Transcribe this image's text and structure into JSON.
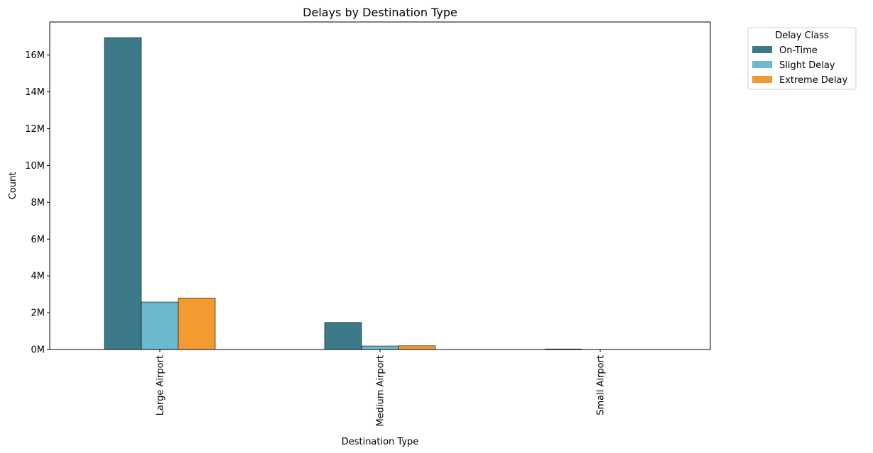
{
  "chart_data": {
    "type": "bar",
    "title": "Delays by Destination Type",
    "xlabel": "Destination Type",
    "ylabel": "Count",
    "categories": [
      "Large Airport",
      "Medium Airport",
      "Small Airport"
    ],
    "series": [
      {
        "name": "On-Time",
        "color": "#3d7a89",
        "values": [
          16950000,
          1470000,
          30000
        ]
      },
      {
        "name": "Slight Delay",
        "color": "#6cb8cf",
        "values": [
          2580000,
          190000,
          5000
        ]
      },
      {
        "name": "Extreme Delay",
        "color": "#f39a30",
        "values": [
          2800000,
          200000,
          6000
        ]
      }
    ],
    "ylim": [
      0,
      17800000
    ],
    "yticks": [
      0,
      2000000,
      4000000,
      6000000,
      8000000,
      10000000,
      12000000,
      14000000,
      16000000
    ],
    "ytick_labels": [
      "0M",
      "2M",
      "4M",
      "6M",
      "8M",
      "10M",
      "12M",
      "14M",
      "16M"
    ],
    "legend": {
      "title": "Delay Class",
      "placement": "outside-top-right"
    },
    "grid": false
  }
}
